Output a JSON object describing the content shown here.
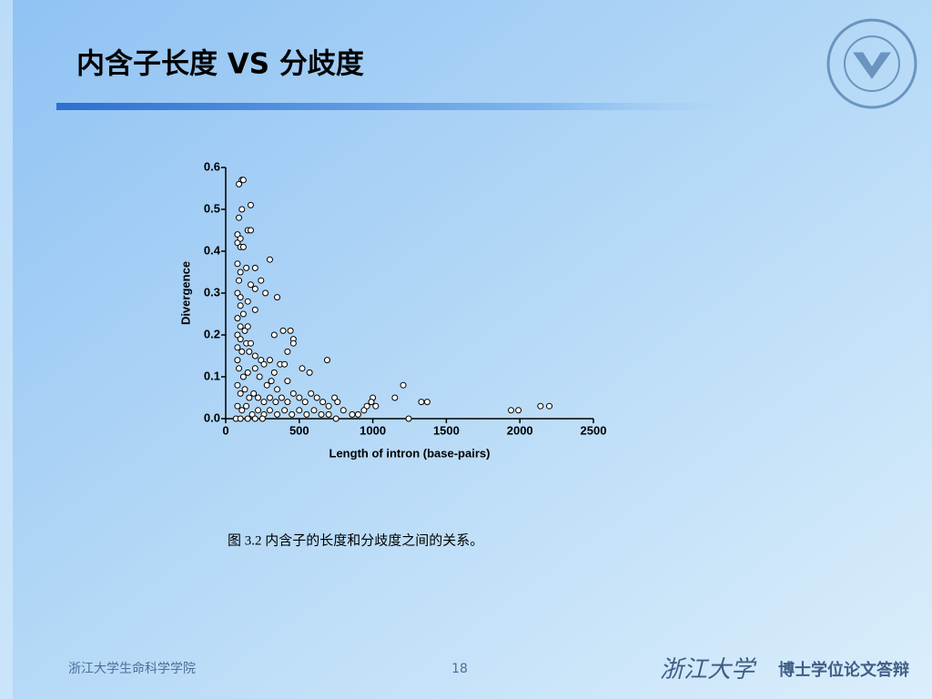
{
  "slide": {
    "title": "内含子长度 VS 分歧度",
    "caption": "图 3.2 内含子的长度和分歧度之间的关系。",
    "footer_left": "浙江大学生命科学学院",
    "page_number": "18",
    "footer_brand": "浙江大学",
    "footer_event": "博士学位论文答辩"
  },
  "chart_data": {
    "type": "scatter",
    "x_label": "Length of intron (base-pairs)",
    "y_label": "Divergence",
    "color": "#ffffff",
    "edge_color": "#000000",
    "xlim": [
      0,
      2500
    ],
    "xticks": [
      0,
      500,
      1000,
      1500,
      2000,
      2500
    ],
    "ylim": [
      0,
      0.6
    ],
    "yticks": [
      {
        "value": 0,
        "label": "0.0"
      },
      0.1,
      0.2,
      0.3,
      0.4,
      0.5,
      0.6
    ],
    "x": [
      1244,
      1207,
      1330,
      1370,
      1150,
      1000,
      990,
      1020,
      960,
      1940,
      1990,
      2140,
      2200,
      690,
      570,
      520,
      440,
      460,
      460,
      420,
      390,
      330,
      300,
      350,
      240,
      270,
      170,
      110,
      120,
      90,
      110,
      90,
      150,
      170,
      80,
      80,
      100,
      120,
      100,
      80,
      100,
      140,
      200,
      170,
      200,
      150,
      200,
      90,
      80,
      100,
      100,
      120,
      80,
      100,
      130,
      150,
      80,
      100,
      140,
      170,
      80,
      110,
      160,
      200,
      240,
      260,
      300,
      330,
      370,
      400,
      420,
      80,
      90,
      120,
      150,
      200,
      230,
      280,
      310,
      350,
      80,
      100,
      130,
      160,
      190,
      220,
      260,
      300,
      340,
      380,
      420,
      460,
      500,
      540,
      580,
      620,
      660,
      700,
      740,
      760,
      800,
      860,
      900,
      940,
      80,
      110,
      140,
      180,
      220,
      260,
      300,
      350,
      400,
      450,
      500,
      550,
      600,
      650,
      700,
      750,
      70,
      100,
      150,
      200,
      250
    ],
    "y": [
      0,
      0.08,
      0.04,
      0.04,
      0.05,
      0.05,
      0.04,
      0.03,
      0.03,
      0.02,
      0.02,
      0.03,
      0.03,
      0.14,
      0.11,
      0.12,
      0.21,
      0.19,
      0.18,
      0.16,
      0.21,
      0.2,
      0.38,
      0.29,
      0.33,
      0.3,
      0.51,
      0.57,
      0.57,
      0.56,
      0.5,
      0.48,
      0.45,
      0.45,
      0.44,
      0.42,
      0.41,
      0.41,
      0.43,
      0.37,
      0.35,
      0.36,
      0.36,
      0.32,
      0.31,
      0.28,
      0.26,
      0.33,
      0.3,
      0.29,
      0.27,
      0.25,
      0.24,
      0.22,
      0.21,
      0.22,
      0.2,
      0.19,
      0.18,
      0.18,
      0.17,
      0.16,
      0.16,
      0.15,
      0.14,
      0.13,
      0.14,
      0.11,
      0.13,
      0.13,
      0.09,
      0.14,
      0.12,
      0.1,
      0.11,
      0.12,
      0.1,
      0.08,
      0.09,
      0.07,
      0.08,
      0.06,
      0.07,
      0.05,
      0.06,
      0.05,
      0.04,
      0.05,
      0.04,
      0.05,
      0.04,
      0.06,
      0.05,
      0.04,
      0.06,
      0.05,
      0.04,
      0.03,
      0.05,
      0.04,
      0.02,
      0.01,
      0.01,
      0.02,
      0.03,
      0.02,
      0.03,
      0.01,
      0.02,
      0.01,
      0.02,
      0.01,
      0.02,
      0.01,
      0.02,
      0.01,
      0.02,
      0.01,
      0.01,
      0,
      0,
      0,
      0,
      0,
      0
    ]
  }
}
